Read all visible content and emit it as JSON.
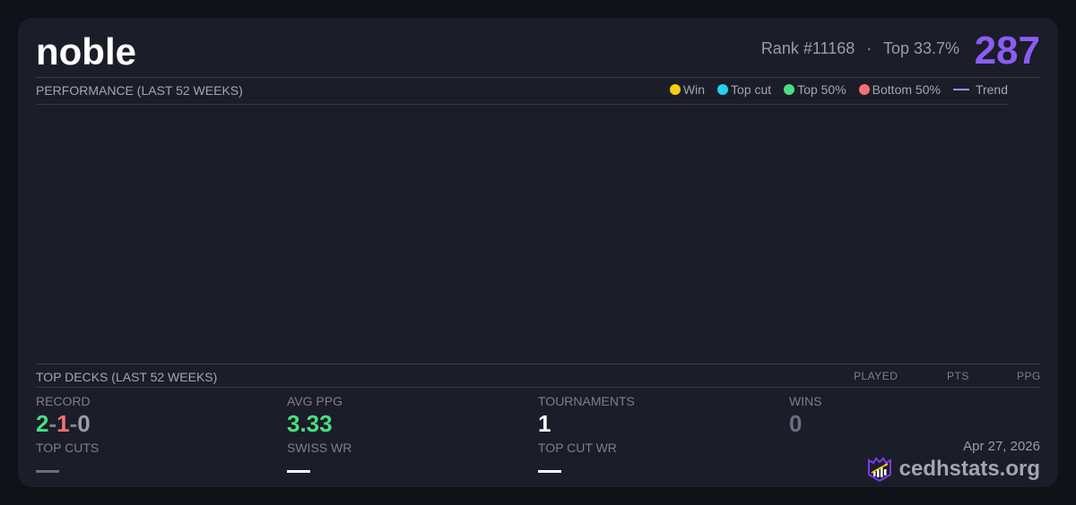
{
  "player": {
    "name": "noble",
    "rank": "Rank #11168",
    "dot": "·",
    "top": "Top 33.7%",
    "score": "287"
  },
  "performance": {
    "title": "PERFORMANCE (LAST 52 WEEKS)",
    "legend": [
      {
        "label": "Win",
        "color": "#facc15"
      },
      {
        "label": "Top cut",
        "color": "#22d3ee"
      },
      {
        "label": "Top 50%",
        "color": "#4ade80"
      },
      {
        "label": "Bottom 50%",
        "color": "#f87171"
      },
      {
        "label": "Trend",
        "color": "#a78bfa"
      }
    ]
  },
  "top_decks": {
    "title": "TOP DECKS (LAST 52 WEEKS)",
    "columns": [
      "PLAYED",
      "PTS",
      "PPG"
    ]
  },
  "stats": {
    "record": {
      "label": "RECORD",
      "wins": "2",
      "sep": "-",
      "losses": "1",
      "draws": "0"
    },
    "avg_ppg": {
      "label": "AVG PPG",
      "value": "3.33"
    },
    "tournaments": {
      "label": "TOURNAMENTS",
      "value": "1"
    },
    "wins": {
      "label": "WINS",
      "value": "0"
    },
    "top_cuts": {
      "label": "TOP CUTS",
      "value": "—"
    },
    "swiss_wr": {
      "label": "SWISS WR",
      "value": "—"
    },
    "top_cut_wr": {
      "label": "TOP CUT WR",
      "value": "—"
    }
  },
  "footer": {
    "date": "Apr 27, 2026",
    "brand": "cedhstats.org"
  }
}
